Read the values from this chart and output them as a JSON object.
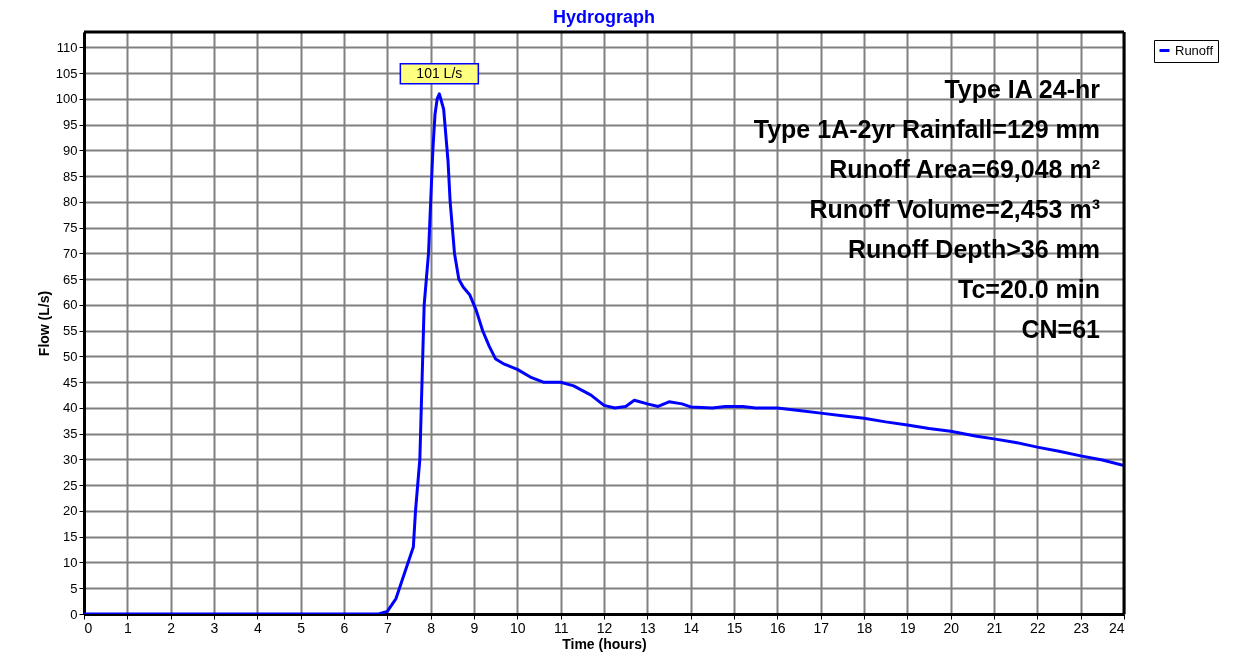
{
  "chart_data": {
    "type": "line",
    "title": "Hydrograph",
    "xlabel": "Time  (hours)",
    "ylabel": "Flow  (L/s)",
    "x": [
      0,
      6.8,
      7.0,
      7.2,
      7.4,
      7.6,
      7.65,
      7.75,
      7.8,
      7.85,
      7.95,
      8.0,
      8.05,
      8.1,
      8.15,
      8.2,
      8.3,
      8.4,
      8.45,
      8.55,
      8.65,
      8.75,
      8.9,
      9.05,
      9.2,
      9.35,
      9.5,
      9.7,
      10.0,
      10.3,
      10.6,
      11.0,
      11.3,
      11.7,
      12.0,
      12.25,
      12.5,
      12.7,
      13.0,
      13.25,
      13.5,
      13.8,
      14.0,
      14.5,
      14.8,
      15.2,
      15.5,
      16.0,
      16.5,
      17.0,
      17.5,
      18.0,
      18.5,
      19.0,
      19.5,
      20.0,
      20.3,
      20.6,
      21.0,
      21.5,
      22.0,
      22.5,
      23.0,
      23.5,
      24.0
    ],
    "series": [
      {
        "name": "Runoff",
        "color": "#0000ff",
        "values": [
          0,
          0,
          0.5,
          3,
          8,
          13,
          20,
          30,
          45,
          60,
          70,
          80,
          90,
          97,
          100,
          101,
          98,
          88,
          80,
          70,
          65,
          63.5,
          62,
          59,
          55,
          52,
          49.5,
          48.5,
          47.5,
          46,
          45,
          45,
          44.3,
          42.5,
          40.5,
          40,
          40.3,
          41.5,
          40.8,
          40.3,
          41.2,
          40.8,
          40.2,
          40,
          40.3,
          40.3,
          40,
          40,
          39.5,
          39,
          38.5,
          38,
          37.3,
          36.7,
          36,
          35.5,
          35,
          34.5,
          34,
          33.3,
          32.4,
          31.6,
          30.7,
          29.9,
          28.8
        ]
      }
    ],
    "xlim": [
      0,
      24
    ],
    "xticks": [
      0,
      1,
      2,
      3,
      4,
      5,
      6,
      7,
      8,
      9,
      10,
      11,
      12,
      13,
      14,
      15,
      16,
      17,
      18,
      19,
      20,
      21,
      22,
      23,
      24
    ],
    "ylim": [
      0,
      113
    ],
    "yticks": [
      0,
      5,
      10,
      15,
      20,
      25,
      30,
      35,
      40,
      45,
      50,
      55,
      60,
      65,
      70,
      75,
      80,
      85,
      90,
      95,
      100,
      105,
      110
    ],
    "grid": true,
    "legend": "top right",
    "marker": "none",
    "line_style": "solid",
    "annotations": [
      {
        "text": "101 L/s",
        "x": 8.2,
        "y": 101
      },
      "Type IA 24-hr",
      "Type 1A-2yr Rainfall=129 mm",
      "Runoff Area=69,048 m²",
      "Runoff Volume=2,453 m³",
      "Runoff Depth>36 mm",
      "Tc=20.0 min",
      "CN=61"
    ]
  }
}
